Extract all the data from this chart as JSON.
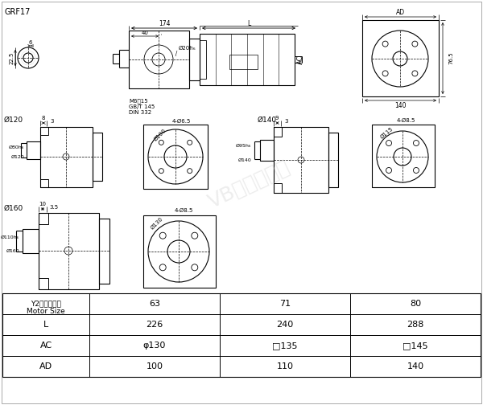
{
  "title": "GRF17",
  "bg_color": "#ffffff",
  "line_color": "#000000",
  "table_header": "Y2电机机座号\nMotor Size",
  "col_sizes": [
    "63",
    "71",
    "80"
  ],
  "row_L": [
    "226",
    "240",
    "288"
  ],
  "row_AC": [
    "φ130",
    "□135",
    "□145"
  ],
  "row_AD": [
    "100",
    "110",
    "140"
  ],
  "watermark": "VB客户端特门"
}
